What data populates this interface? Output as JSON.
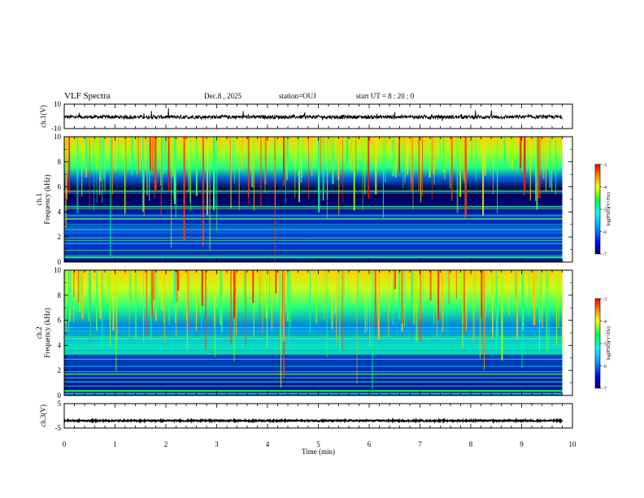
{
  "header": {
    "title": "VLF Spectra",
    "date": "Dec.8 , 2025",
    "station": "station=OUJ",
    "start_ut": "start UT =  8 : 20 : 0"
  },
  "colors": {
    "axis": "#000000",
    "spec_low": "#00005a",
    "spec_high": "#ff0000"
  },
  "chart_data": [
    {
      "id": "ch1-waveform",
      "type": "line",
      "ylabel": "ch.1(V)",
      "ylim": [
        -10,
        10
      ],
      "yticks": [
        -10,
        10
      ],
      "ytick_labels": [
        "-10",
        "10"
      ],
      "xlim": [
        0,
        10
      ],
      "series": [
        {
          "data_end_min": 9.8,
          "baseline": -0.5,
          "noise_amplitude": 1.5
        }
      ]
    },
    {
      "id": "ch1-spectrogram",
      "type": "heatmap",
      "ylabel": "ch.1\nFrequency (kHz)",
      "ylabel_lines": [
        "ch.1",
        "Frequency (kHz)"
      ],
      "ylim": [
        0,
        10
      ],
      "yticks": [
        0,
        2,
        4,
        6,
        8,
        10
      ],
      "xlim": [
        0,
        10
      ],
      "data_end_min": 9.8,
      "colorbar": {
        "label": "log(PSD)(V²/Hz)",
        "range": [
          -7,
          -3
        ],
        "ticks": [
          -3,
          -4,
          -5,
          -6,
          -7
        ]
      }
    },
    {
      "id": "ch2-spectrogram",
      "type": "heatmap",
      "ylabel": "ch.2\nFrequency (kHz)",
      "ylabel_lines": [
        "ch.2",
        "Frequency (kHz)"
      ],
      "ylim": [
        0,
        10
      ],
      "yticks": [
        0,
        2,
        4,
        6,
        8,
        10
      ],
      "xlim": [
        0,
        10
      ],
      "data_end_min": 9.8,
      "colorbar": {
        "label": "log(PSD)(V²/Hz)",
        "range": [
          -7,
          -3
        ],
        "ticks": [
          -3,
          -4,
          -5,
          -6,
          -7
        ]
      }
    },
    {
      "id": "ch3-waveform",
      "type": "line",
      "ylabel": "ch.3(V)",
      "ylim": [
        -5,
        5
      ],
      "yticks": [
        -5,
        5
      ],
      "ytick_labels": [
        "-5",
        "5"
      ],
      "xlim": [
        0,
        10
      ],
      "xlabel": "Time (min)",
      "xticks": [
        0,
        1,
        2,
        3,
        4,
        5,
        6,
        7,
        8,
        9,
        10
      ],
      "series": [
        {
          "data_end_min": 9.8,
          "baseline": -2,
          "noise_amplitude": 0.3
        }
      ]
    }
  ]
}
